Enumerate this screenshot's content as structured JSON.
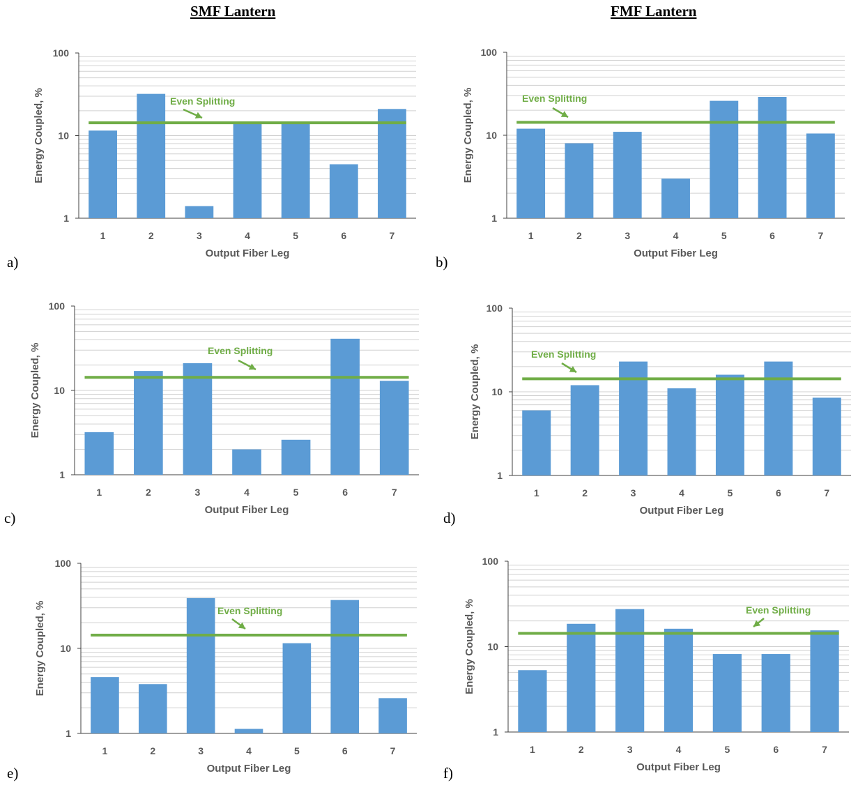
{
  "headings": {
    "left": "SMF Lantern",
    "right": "FMF Lantern"
  },
  "colors": {
    "bar": "#5b9bd5",
    "even_splitting": "#70ad47",
    "grid": "#d0d0d0",
    "axis": "#404040",
    "text": "#595959"
  },
  "chart_data": [
    {
      "panel": "a)",
      "type": "bar",
      "y_scale": "log",
      "ylim": [
        1,
        100
      ],
      "yticks": [
        "1",
        "10",
        "100"
      ],
      "xlabel": "Output Fiber Leg",
      "ylabel": "Energy Coupled, %",
      "categories": [
        "1",
        "2",
        "3",
        "4",
        "5",
        "6",
        "7"
      ],
      "values": [
        11.5,
        32,
        1.4,
        14,
        14,
        4.5,
        21
      ],
      "reference_line": {
        "label": "Even Splitting",
        "value": 14.3
      },
      "grid": true
    },
    {
      "panel": "b)",
      "type": "bar",
      "y_scale": "log",
      "ylim": [
        1,
        100
      ],
      "yticks": [
        "1",
        "10",
        "100"
      ],
      "xlabel": "Output Fiber Leg",
      "ylabel": "Energy Coupled, %",
      "categories": [
        "1",
        "2",
        "3",
        "4",
        "5",
        "6",
        "7"
      ],
      "values": [
        12,
        8,
        11,
        3,
        26,
        29,
        10.5
      ],
      "reference_line": {
        "label": "Even Splitting",
        "value": 14.3
      },
      "grid": true
    },
    {
      "panel": "c)",
      "type": "bar",
      "y_scale": "log",
      "ylim": [
        1,
        100
      ],
      "yticks": [
        "1",
        "10",
        "100"
      ],
      "xlabel": "Output Fiber Leg",
      "ylabel": "Energy Coupled, %",
      "categories": [
        "1",
        "2",
        "3",
        "4",
        "5",
        "6",
        "7"
      ],
      "values": [
        3.2,
        17,
        21,
        2,
        2.6,
        41,
        13
      ],
      "reference_line": {
        "label": "Even Splitting",
        "value": 14.3
      },
      "grid": true
    },
    {
      "panel": "d)",
      "type": "bar",
      "y_scale": "log",
      "ylim": [
        1,
        100
      ],
      "yticks": [
        "1",
        "10",
        "100"
      ],
      "xlabel": "Output Fiber Leg",
      "ylabel": "Energy Coupled, %",
      "categories": [
        "1",
        "2",
        "3",
        "4",
        "5",
        "6",
        "7"
      ],
      "values": [
        6,
        12,
        23,
        11,
        16,
        23,
        8.5
      ],
      "reference_line": {
        "label": "Even Splitting",
        "value": 14.3
      },
      "grid": true
    },
    {
      "panel": "e)",
      "type": "bar",
      "y_scale": "log",
      "ylim": [
        1,
        100
      ],
      "yticks": [
        "1",
        "10",
        "100"
      ],
      "xlabel": "Output Fiber Leg",
      "ylabel": "Energy Coupled, %",
      "categories": [
        "1",
        "2",
        "3",
        "4",
        "5",
        "6",
        "7"
      ],
      "values": [
        4.6,
        3.8,
        39,
        1.13,
        11.5,
        37,
        2.6
      ],
      "reference_line": {
        "label": "Even Splitting",
        "value": 14.3
      },
      "grid": true
    },
    {
      "panel": "f)",
      "type": "bar",
      "y_scale": "log",
      "ylim": [
        1,
        100
      ],
      "yticks": [
        "1",
        "10",
        "100"
      ],
      "xlabel": "Output Fiber Leg",
      "ylabel": "Energy Coupled, %",
      "categories": [
        "1",
        "2",
        "3",
        "4",
        "5",
        "6",
        "7"
      ],
      "values": [
        5.3,
        18.5,
        27.5,
        16.2,
        8.2,
        8.2,
        15.5
      ],
      "reference_line": {
        "label": "Even Splitting",
        "value": 14.3
      },
      "grid": true
    }
  ]
}
